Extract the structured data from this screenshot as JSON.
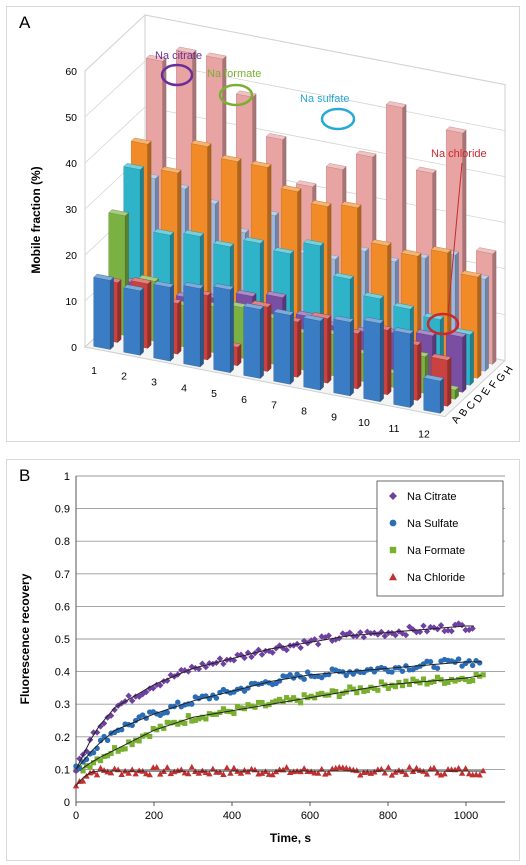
{
  "panels": {
    "a": {
      "letter": "A"
    },
    "b": {
      "letter": "B"
    }
  },
  "chart_data": [
    {
      "type": "bar",
      "panel": "A",
      "title": "",
      "ylabel": "Mobile fraction (%)",
      "xlabel": "",
      "ylim": [
        0,
        60
      ],
      "y_ticks": [
        0,
        10,
        20,
        30,
        40,
        50,
        60
      ],
      "x_categories": [
        "1",
        "2",
        "3",
        "4",
        "5",
        "6",
        "7",
        "8",
        "9",
        "10",
        "11",
        "12"
      ],
      "depth_categories": [
        "A",
        "B",
        "C",
        "D",
        "E",
        "F",
        "G",
        "H"
      ],
      "grid": true,
      "annotations": [
        {
          "text": "Na citrate",
          "color": "#6a2e9a"
        },
        {
          "text": "Na formate",
          "color": "#7ab030"
        },
        {
          "text": "Na sulfate",
          "color": "#27a9d6"
        },
        {
          "text": "Na chloride",
          "color": "#c8282e"
        }
      ],
      "series": [
        {
          "label": "A",
          "color": "#3b7dc4",
          "values": [
            15,
            14,
            16,
            17,
            18,
            15,
            15,
            15,
            16,
            17,
            16,
            7
          ]
        },
        {
          "label": "B",
          "color": "#c9423f",
          "values": [
            13,
            14,
            11,
            14,
            4,
            14,
            12,
            14,
            12,
            14,
            12,
            10
          ]
        },
        {
          "label": "C",
          "color": "#7bb143",
          "values": [
            26,
            13,
            9,
            10,
            11,
            10,
            8,
            9,
            6,
            3,
            8,
            2
          ]
        },
        {
          "label": "D",
          "color": "#7a4fa3",
          "values": [
            10,
            10,
            9,
            10,
            12,
            13,
            10,
            9,
            9,
            10,
            11,
            12
          ]
        },
        {
          "label": "E",
          "color": "#2fb3c8",
          "values": [
            33,
            20,
            21,
            20,
            22,
            21,
            24,
            18,
            15,
            14,
            13,
            11
          ]
        },
        {
          "label": "F",
          "color": "#f08b28",
          "values": [
            37,
            32,
            39,
            37,
            37,
            33,
            31,
            32,
            25,
            24,
            26,
            22
          ]
        },
        {
          "label": "G",
          "color": "#9db7e0",
          "values": [
            28,
            27,
            25,
            20,
            25,
            18,
            18,
            21,
            20,
            22,
            24,
            20
          ]
        },
        {
          "label": "H",
          "color": "#e8a3a3",
          "values": [
            52,
            55,
            55,
            48,
            40,
            31,
            36,
            40,
            52,
            39,
            49,
            24
          ]
        }
      ]
    },
    {
      "type": "scatter",
      "panel": "B",
      "title": "",
      "xlabel": "Time, s",
      "ylabel": "Fluorescence recovery",
      "xlim": [
        0,
        1100
      ],
      "ylim": [
        0,
        1
      ],
      "x_ticks": [
        0,
        200,
        400,
        600,
        800,
        1000
      ],
      "y_ticks": [
        0,
        0.1,
        0.2,
        0.3,
        0.4,
        0.5,
        0.6,
        0.7,
        0.8,
        0.9,
        1
      ],
      "grid": true,
      "legend_position": "top-right",
      "series": [
        {
          "name": "Na Citrate",
          "color": "#7040a0",
          "marker": "diamond",
          "x_max": 1020,
          "x": [
            0,
            50,
            100,
            200,
            300,
            400,
            500,
            600,
            700,
            800,
            900,
            1000,
            1020
          ],
          "y": [
            0.1,
            0.22,
            0.29,
            0.36,
            0.41,
            0.44,
            0.47,
            0.49,
            0.51,
            0.52,
            0.53,
            0.54,
            0.54
          ]
        },
        {
          "name": "Na Sulfate",
          "color": "#2a6cb5",
          "marker": "circle",
          "x_max": 1040,
          "x": [
            0,
            50,
            100,
            200,
            300,
            400,
            500,
            600,
            700,
            800,
            900,
            1000,
            1040
          ],
          "y": [
            0.1,
            0.17,
            0.22,
            0.27,
            0.31,
            0.34,
            0.37,
            0.39,
            0.4,
            0.41,
            0.42,
            0.43,
            0.43
          ]
        },
        {
          "name": "Na Formate",
          "color": "#7ab030",
          "marker": "square",
          "x_max": 1050,
          "x": [
            0,
            50,
            100,
            200,
            300,
            400,
            500,
            600,
            700,
            800,
            900,
            1000,
            1050
          ],
          "y": [
            0.09,
            0.13,
            0.16,
            0.22,
            0.26,
            0.28,
            0.3,
            0.32,
            0.34,
            0.36,
            0.37,
            0.38,
            0.39
          ]
        },
        {
          "name": "Na Chloride",
          "color": "#c03030",
          "marker": "triangle",
          "x_max": 1050,
          "x": [
            0,
            30,
            60,
            100,
            200,
            400,
            600,
            800,
            1000,
            1050
          ],
          "y": [
            0.05,
            0.09,
            0.095,
            0.095,
            0.095,
            0.095,
            0.095,
            0.095,
            0.095,
            0.095
          ]
        }
      ]
    }
  ]
}
